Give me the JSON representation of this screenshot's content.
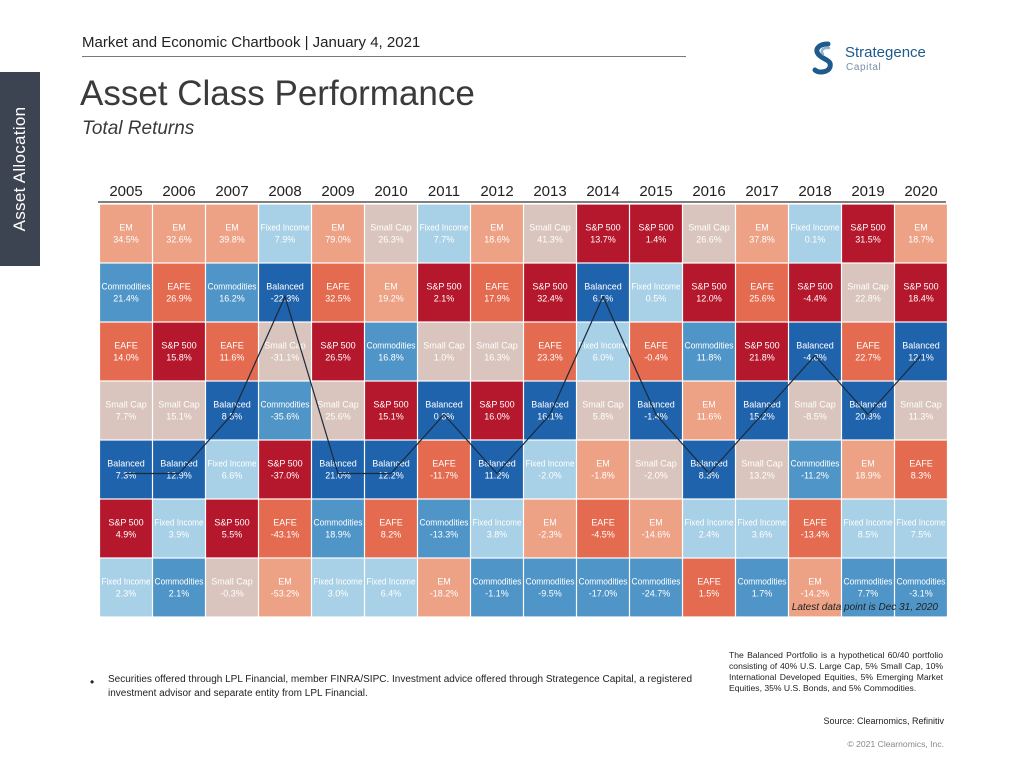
{
  "header": {
    "chartbook": "Market and Economic Chartbook | January 4, 2021",
    "title": "Asset Class Performance",
    "subtitle": "Total Returns"
  },
  "side_tab": {
    "label": "Asset Allocation"
  },
  "logo": {
    "name": "Strategence",
    "sub": "Capital",
    "icon": "strategence-s-logo-icon"
  },
  "colors": {
    "EM": "#eda286",
    "EAFE": "#e56b50",
    "S&P 500": "#b5172c",
    "Small Cap": "#d9c5bd",
    "Fixed Income": "#a8d0e6",
    "Commodities": "#4f95c8",
    "Balanced": "#1f63ac"
  },
  "chart_data": {
    "type": "table",
    "years": [
      "2005",
      "2006",
      "2007",
      "2008",
      "2009",
      "2010",
      "2011",
      "2012",
      "2013",
      "2014",
      "2015",
      "2016",
      "2017",
      "2018",
      "2019",
      "2020"
    ],
    "columns": [
      [
        [
          "EM",
          "34.5%"
        ],
        [
          "Commodities",
          "21.4%"
        ],
        [
          "EAFE",
          "14.0%"
        ],
        [
          "Small Cap",
          "7.7%"
        ],
        [
          "Balanced",
          "7.3%"
        ],
        [
          "S&P 500",
          "4.9%"
        ],
        [
          "Fixed Income",
          "2.3%"
        ]
      ],
      [
        [
          "EM",
          "32.6%"
        ],
        [
          "EAFE",
          "26.9%"
        ],
        [
          "S&P 500",
          "15.8%"
        ],
        [
          "Small Cap",
          "15.1%"
        ],
        [
          "Balanced",
          "12.9%"
        ],
        [
          "Fixed Income",
          "3.9%"
        ],
        [
          "Commodities",
          "2.1%"
        ]
      ],
      [
        [
          "EM",
          "39.8%"
        ],
        [
          "Commodities",
          "16.2%"
        ],
        [
          "EAFE",
          "11.6%"
        ],
        [
          "Balanced",
          "8.5%"
        ],
        [
          "Fixed Income",
          "6.6%"
        ],
        [
          "S&P 500",
          "5.5%"
        ],
        [
          "Small Cap",
          "-0.3%"
        ]
      ],
      [
        [
          "Fixed Income",
          "7.9%"
        ],
        [
          "Balanced",
          "-22.3%"
        ],
        [
          "Small Cap",
          "-31.1%"
        ],
        [
          "Commodities",
          "-35.6%"
        ],
        [
          "S&P 500",
          "-37.0%"
        ],
        [
          "EAFE",
          "-43.1%"
        ],
        [
          "EM",
          "-53.2%"
        ]
      ],
      [
        [
          "EM",
          "79.0%"
        ],
        [
          "EAFE",
          "32.5%"
        ],
        [
          "S&P 500",
          "26.5%"
        ],
        [
          "Small Cap",
          "25.6%"
        ],
        [
          "Balanced",
          "21.0%"
        ],
        [
          "Commodities",
          "18.9%"
        ],
        [
          "Fixed Income",
          "3.0%"
        ]
      ],
      [
        [
          "Small Cap",
          "26.3%"
        ],
        [
          "EM",
          "19.2%"
        ],
        [
          "Commodities",
          "16.8%"
        ],
        [
          "S&P 500",
          "15.1%"
        ],
        [
          "Balanced",
          "12.2%"
        ],
        [
          "EAFE",
          "8.2%"
        ],
        [
          "Fixed Income",
          "6.4%"
        ]
      ],
      [
        [
          "Fixed Income",
          "7.7%"
        ],
        [
          "S&P 500",
          "2.1%"
        ],
        [
          "Small Cap",
          "1.0%"
        ],
        [
          "Balanced",
          "0.8%"
        ],
        [
          "EAFE",
          "-11.7%"
        ],
        [
          "Commodities",
          "-13.3%"
        ],
        [
          "EM",
          "-18.2%"
        ]
      ],
      [
        [
          "EM",
          "18.6%"
        ],
        [
          "EAFE",
          "17.9%"
        ],
        [
          "Small Cap",
          "16.3%"
        ],
        [
          "S&P 500",
          "16.0%"
        ],
        [
          "Balanced",
          "11.2%"
        ],
        [
          "Fixed Income",
          "3.8%"
        ],
        [
          "Commodities",
          "-1.1%"
        ]
      ],
      [
        [
          "Small Cap",
          "41.3%"
        ],
        [
          "S&P 500",
          "32.4%"
        ],
        [
          "EAFE",
          "23.3%"
        ],
        [
          "Balanced",
          "16.1%"
        ],
        [
          "Fixed Income",
          "-2.0%"
        ],
        [
          "EM",
          "-2.3%"
        ],
        [
          "Commodities",
          "-9.5%"
        ]
      ],
      [
        [
          "S&P 500",
          "13.7%"
        ],
        [
          "Balanced",
          "6.5%"
        ],
        [
          "Fixed Income",
          "6.0%"
        ],
        [
          "Small Cap",
          "5.8%"
        ],
        [
          "EM",
          "-1.8%"
        ],
        [
          "EAFE",
          "-4.5%"
        ],
        [
          "Commodities",
          "-17.0%"
        ]
      ],
      [
        [
          "S&P 500",
          "1.4%"
        ],
        [
          "Fixed Income",
          "0.5%"
        ],
        [
          "EAFE",
          "-0.4%"
        ],
        [
          "Balanced",
          "-1.4%"
        ],
        [
          "Small Cap",
          "-2.0%"
        ],
        [
          "EM",
          "-14.6%"
        ],
        [
          "Commodities",
          "-24.7%"
        ]
      ],
      [
        [
          "Small Cap",
          "26.6%"
        ],
        [
          "S&P 500",
          "12.0%"
        ],
        [
          "Commodities",
          "11.8%"
        ],
        [
          "EM",
          "11.6%"
        ],
        [
          "Balanced",
          "8.3%"
        ],
        [
          "Fixed Income",
          "2.4%"
        ],
        [
          "EAFE",
          "1.5%"
        ]
      ],
      [
        [
          "EM",
          "37.8%"
        ],
        [
          "EAFE",
          "25.6%"
        ],
        [
          "S&P 500",
          "21.8%"
        ],
        [
          "Balanced",
          "15.2%"
        ],
        [
          "Small Cap",
          "13.2%"
        ],
        [
          "Fixed Income",
          "3.6%"
        ],
        [
          "Commodities",
          "1.7%"
        ]
      ],
      [
        [
          "Fixed Income",
          "0.1%"
        ],
        [
          "S&P 500",
          "-4.4%"
        ],
        [
          "Balanced",
          "-4.8%"
        ],
        [
          "Small Cap",
          "-8.5%"
        ],
        [
          "Commodities",
          "-11.2%"
        ],
        [
          "EAFE",
          "-13.4%"
        ],
        [
          "EM",
          "-14.2%"
        ]
      ],
      [
        [
          "S&P 500",
          "31.5%"
        ],
        [
          "Small Cap",
          "22.8%"
        ],
        [
          "EAFE",
          "22.7%"
        ],
        [
          "Balanced",
          "20.3%"
        ],
        [
          "EM",
          "18.9%"
        ],
        [
          "Fixed Income",
          "8.5%"
        ],
        [
          "Commodities",
          "7.7%"
        ]
      ],
      [
        [
          "EM",
          "18.7%"
        ],
        [
          "S&P 500",
          "18.4%"
        ],
        [
          "Balanced",
          "12.1%"
        ],
        [
          "Small Cap",
          "11.3%"
        ],
        [
          "EAFE",
          "8.3%"
        ],
        [
          "Fixed Income",
          "7.5%"
        ],
        [
          "Commodities",
          "-3.1%"
        ]
      ]
    ],
    "balanced_line": true,
    "annotation": "Latest data point is Dec 31, 2020"
  },
  "footer": {
    "disclosure": "Securities offered through LPL Financial, member FINRA/SIPC. Investment advice offered through Strategence Capital, a registered investment advisor and separate entity from LPL Financial.",
    "balanced_note": "The Balanced Portfolio is a hypothetical 60/40 portfolio consisting of 40% U.S. Large Cap, 5% Small Cap, 10% International Developed Equities, 5% Emerging Market Equities, 35% U.S. Bonds, and 5% Commodities.",
    "source": "Source: Clearnomics, Refinitiv",
    "copyright": "© 2021 Clearnomics, Inc."
  }
}
